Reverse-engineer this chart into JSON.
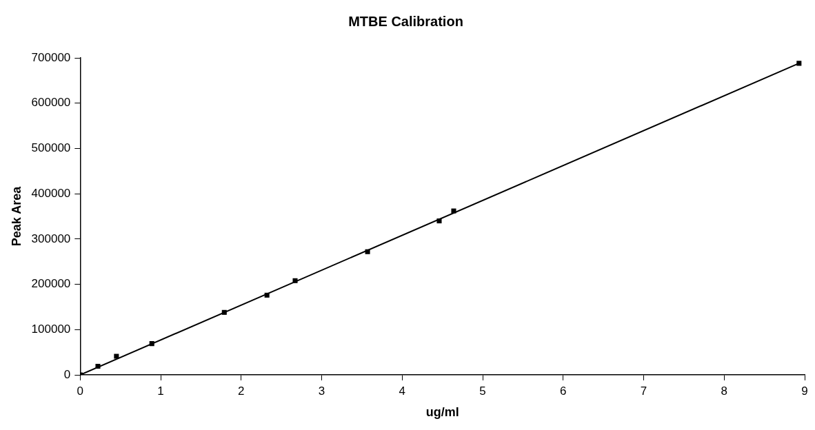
{
  "chart_data": {
    "type": "scatter",
    "title": "MTBE Calibration",
    "xlabel": "ug/ml",
    "ylabel": "Peak Area",
    "xlim": [
      0,
      9
    ],
    "xticks": [
      0,
      1,
      2,
      3,
      4,
      5,
      6,
      7,
      8,
      9
    ],
    "ylim": [
      0,
      700000
    ],
    "yticks": [
      0,
      100000,
      200000,
      300000,
      400000,
      500000,
      600000,
      700000
    ],
    "grid": false,
    "legend": false,
    "series": [
      {
        "marker": "square",
        "color": "#000000",
        "x": [
          0,
          0.22,
          0.45,
          0.89,
          1.79,
          2.32,
          2.67,
          3.57,
          4.46,
          4.64,
          8.93
        ],
        "values": [
          0,
          19000,
          41000,
          69000,
          138000,
          176000,
          208000,
          272000,
          340000,
          362000,
          688000
        ]
      },
      {
        "type": "line",
        "color": "#000000",
        "x": [
          0,
          8.93
        ],
        "values": [
          0,
          688000
        ],
        "line_style": "solid"
      }
    ]
  }
}
